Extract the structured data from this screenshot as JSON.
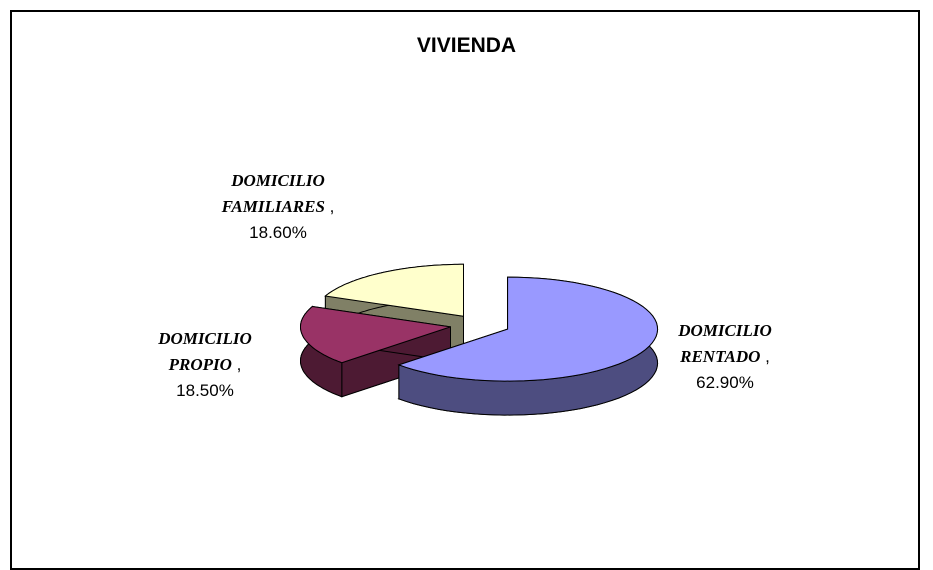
{
  "chart_data": {
    "type": "pie3d",
    "title": "VIVIENDA",
    "categories": [
      "DOMICILIO RENTADO",
      "DOMICILIO PROPIO",
      "DOMICILIO FAMILIARES"
    ],
    "values": [
      62.9,
      18.5,
      18.6
    ],
    "value_labels": [
      "62.90%",
      "18.50%",
      "18.60%"
    ],
    "label_separator": ",",
    "colors": [
      "#9999ff",
      "#993366",
      "#ffffcc"
    ]
  }
}
